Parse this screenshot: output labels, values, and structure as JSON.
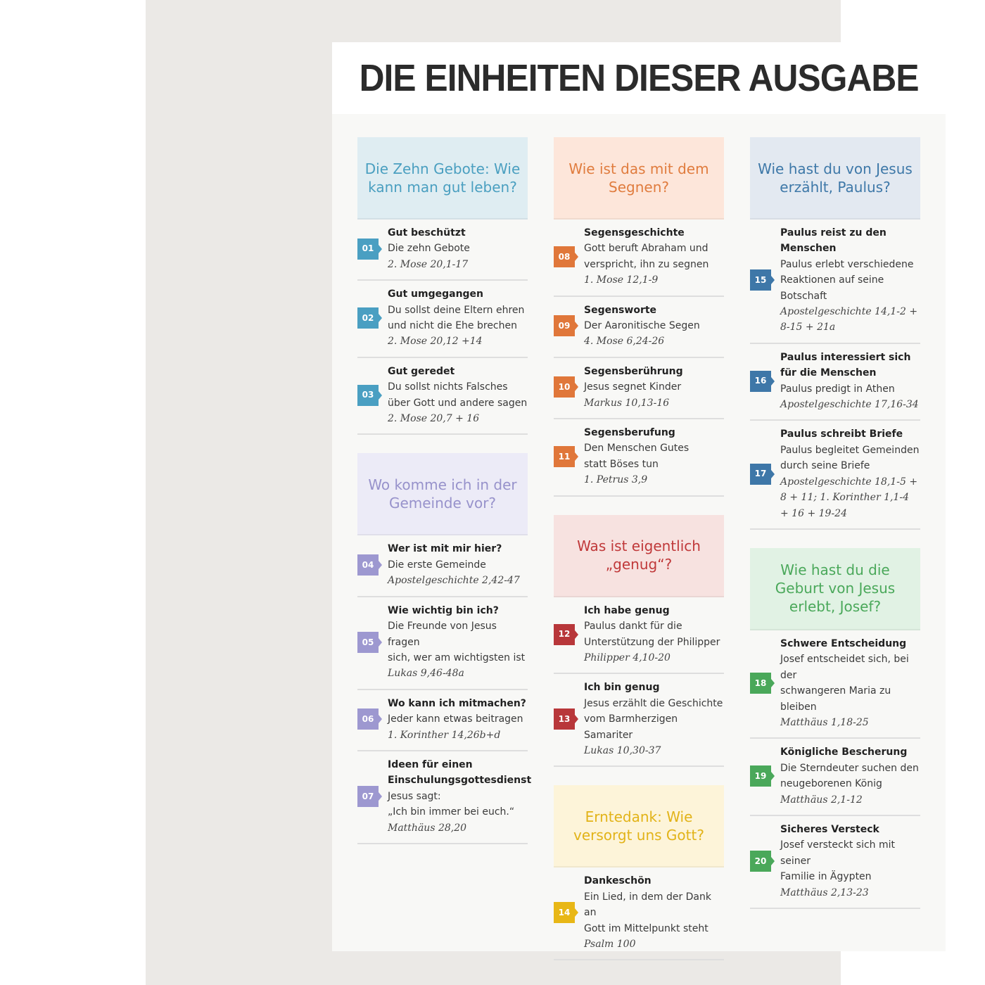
{
  "title": "DIE EINHEITEN DIESER AUSGABE",
  "columns": [
    {
      "sections": [
        {
          "heading": "Die Zehn Gebote: Wie kann man gut leben?",
          "bg": "#dfedf2",
          "color": "#4a9fc0",
          "badge": "#4a9fc2",
          "items": [
            {
              "num": "01",
              "title": "Gut beschützt",
              "lines": [
                "Die zehn Gebote"
              ],
              "ref": "2. Mose 20,1-17"
            },
            {
              "num": "02",
              "title": "Gut umgegangen",
              "lines": [
                "Du sollst deine Eltern ehren",
                "und  nicht die Ehe brechen"
              ],
              "ref": "2. Mose 20,12 +14"
            },
            {
              "num": "03",
              "title": "Gut geredet",
              "lines": [
                "Du sollst nichts Falsches",
                "über Gott und andere sagen"
              ],
              "ref": "2. Mose 20,7 + 16"
            }
          ]
        },
        {
          "heading": "Wo komme ich in der Gemeinde vor?",
          "bg": "#ecebf7",
          "color": "#9792cb",
          "badge": "#9d98d0",
          "items": [
            {
              "num": "04",
              "title": "Wer ist mit mir hier?",
              "lines": [
                "Die erste Gemeinde"
              ],
              "ref": "Apostelgeschichte 2,42-47"
            },
            {
              "num": "05",
              "title": "Wie wichtig bin ich?",
              "lines": [
                "Die Freunde von Jesus fragen",
                "sich, wer am wichtigsten ist"
              ],
              "ref": "Lukas 9,46-48a"
            },
            {
              "num": "06",
              "title": "Wo kann ich mitmachen?",
              "lines": [
                "Jeder kann etwas beitragen"
              ],
              "ref": "1. Korinther 14,26b+d"
            },
            {
              "num": "07",
              "title": "Ideen für einen Einschulungsgottesdienst",
              "lines": [
                "Jesus sagt:",
                "„Ich bin immer bei euch.“"
              ],
              "ref": "Matthäus 28,20"
            }
          ]
        }
      ]
    },
    {
      "sections": [
        {
          "heading": "Wie ist das mit dem Segnen?",
          "bg": "#fde6da",
          "color": "#e07c3e",
          "badge": "#e0773a",
          "items": [
            {
              "num": "08",
              "title": "Segensgeschichte",
              "lines": [
                "Gott beruft Abraham und",
                "verspricht, ihn zu segnen"
              ],
              "ref": "1. Mose 12,1-9"
            },
            {
              "num": "09",
              "title": "Segensworte",
              "lines": [
                "Der Aaronitische Segen"
              ],
              "ref": "4. Mose 6,24-26"
            },
            {
              "num": "10",
              "title": "Segensberührung",
              "lines": [
                "Jesus segnet Kinder"
              ],
              "ref": "Markus 10,13-16"
            },
            {
              "num": "11",
              "title": "Segensberufung",
              "lines": [
                "Den Menschen Gutes",
                "statt Böses tun"
              ],
              "ref": "1. Petrus 3,9"
            }
          ]
        },
        {
          "heading": "Was ist eigentlich „genug“?",
          "bg": "#f7e2e0",
          "color": "#c0393a",
          "badge": "#b8373a",
          "items": [
            {
              "num": "12",
              "title": "Ich habe genug",
              "lines": [
                "Paulus dankt für die",
                "Unterstützung der Philipper"
              ],
              "ref": "Philipper 4,10-20"
            },
            {
              "num": "13",
              "title": "Ich bin genug",
              "lines": [
                "Jesus erzählt die Geschichte",
                "vom Barmherzigen Samariter"
              ],
              "ref": "Lukas 10,30-37"
            }
          ]
        },
        {
          "heading": "Erntedank: Wie versorgt uns Gott?",
          "bg": "#fdf4d9",
          "color": "#e2b318",
          "badge": "#e8b716",
          "items": [
            {
              "num": "14",
              "title": "Dankeschön",
              "lines": [
                "Ein Lied, in dem der Dank an",
                "Gott im Mittelpunkt steht"
              ],
              "ref": "Psalm 100"
            }
          ]
        }
      ]
    },
    {
      "sections": [
        {
          "heading": "Wie hast du von Jesus erzählt, Paulus?",
          "bg": "#e3e9f1",
          "color": "#3e78a8",
          "badge": "#3e77a8",
          "items": [
            {
              "num": "15",
              "title": "Paulus reist zu den Menschen",
              "lines": [
                "Paulus erlebt verschiedene",
                "Reaktionen auf seine Botschaft"
              ],
              "ref": "Apostelgeschichte 14,1-2 + 8-15 + 21a"
            },
            {
              "num": "16",
              "title": "Paulus interessiert sich für die Menschen",
              "lines": [
                "Paulus predigt in Athen"
              ],
              "ref": "Apostelgeschichte 17,16-34"
            },
            {
              "num": "17",
              "title": "Paulus schreibt Briefe",
              "lines": [
                "Paulus begleitet Gemeinden",
                "durch seine Briefe"
              ],
              "ref": "Apostelgeschichte 18,1-5 + 8 + 11; 1. Korinther 1,1-4 + 16 + 19-24"
            }
          ]
        },
        {
          "heading": "Wie hast du die Geburt von Jesus erlebt, Josef?",
          "bg": "#e1f2e4",
          "color": "#4aa85a",
          "badge": "#4aa85a",
          "items": [
            {
              "num": "18",
              "title": "Schwere Entscheidung",
              "lines": [
                "Josef entscheidet sich, bei der",
                "schwangeren Maria zu bleiben"
              ],
              "ref": "Matthäus 1,18-25"
            },
            {
              "num": "19",
              "title": "Königliche Bescherung",
              "lines": [
                "Die Sterndeuter suchen den",
                "neugeborenen König"
              ],
              "ref": "Matthäus 2,1-12"
            },
            {
              "num": "20",
              "title": "Sicheres Versteck",
              "lines": [
                "Josef versteckt sich mit seiner",
                "Familie in Ägypten"
              ],
              "ref": "Matthäus 2,13-23"
            }
          ]
        }
      ]
    }
  ]
}
